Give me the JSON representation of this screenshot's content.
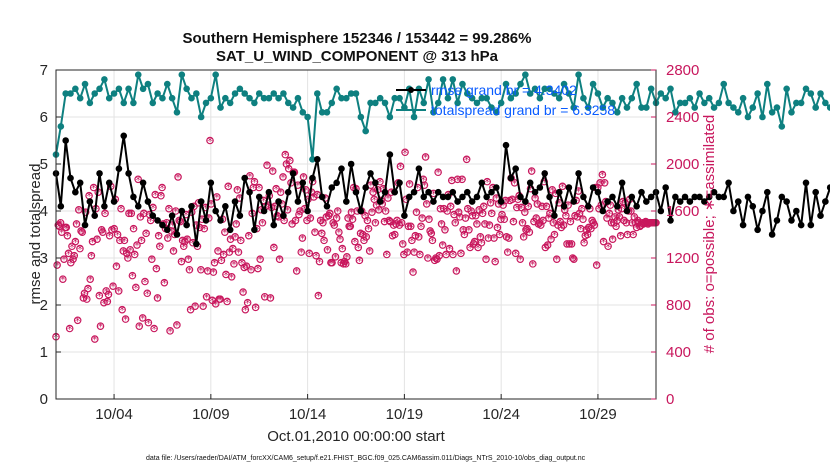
{
  "chart_data": {
    "type": "line",
    "title": "Southern Hemisphere 152346 / 153442 = 99.286%",
    "subtitle": "SAT_U_WIND_COMPONENT @ 313 hPa",
    "xlabel": "Oct.01,2010 00:00:00 start",
    "ylabel": "rmse and totalspread",
    "ylabel_right": "# of obs: o=possible; ∗=assimilated",
    "xlim": [
      1.0,
      32.0
    ],
    "ylim": [
      0,
      7
    ],
    "ylim_right": [
      0,
      2800
    ],
    "x_tick_values": [
      4,
      9,
      14,
      19,
      24,
      29
    ],
    "x_tick_labels": [
      "10/04",
      "10/09",
      "10/14",
      "10/19",
      "10/24",
      "10/29"
    ],
    "y_ticks": [
      0,
      1,
      2,
      3,
      4,
      5,
      6,
      7
    ],
    "y_ticks_right": [
      0,
      400,
      800,
      1200,
      1600,
      2000,
      2400,
      2800
    ],
    "grid": true,
    "legend_position": "top-right",
    "footer": "data file: /Users/raeder/DAI/ATM_forcXX/CAM6_setup/f.e21.FHIST_BGC.f09_025.CAM6assim.011/Diags_NTrS_2010-10/obs_diag_output.nc",
    "step_days": 0.25,
    "x_start": 1.0,
    "series": [
      {
        "name": "rmse grand br = 4.3402",
        "color": "#000000",
        "axis": "left",
        "values": [
          4.8,
          4.1,
          5.5,
          4.7,
          4.4,
          4.6,
          3.7,
          4.2,
          3.9,
          4.8,
          4.1,
          4.6,
          4.2,
          4.9,
          5.6,
          4.8,
          4.3,
          4.1,
          4.6,
          4.2,
          3.9,
          3.8,
          3.7,
          3.6,
          3.9,
          3.5,
          4.0,
          3.7,
          4.1,
          3.3,
          4.2,
          3.8,
          4.6,
          4.0,
          3.8,
          4.1,
          3.6,
          4.2,
          3.9,
          4.7,
          4.4,
          3.6,
          4.3,
          4.0,
          4.4,
          3.7,
          4.2,
          3.9,
          4.4,
          4.8,
          4.2,
          4.6,
          4.0,
          4.7,
          5.1,
          4.3,
          4.1,
          4.5,
          4.6,
          4.9,
          4.2,
          5.0,
          4.4,
          4.0,
          4.5,
          4.8,
          4.6,
          4.2,
          4.4,
          5.2,
          4.4,
          4.6,
          3.9,
          4.3,
          4.4,
          4.9,
          4.3,
          4.4,
          4.2,
          4.4,
          4.3,
          4.3,
          4.4,
          4.2,
          4.3,
          4.4,
          4.2,
          4.3,
          4.6,
          4.3,
          4.4,
          4.5,
          4.2,
          5.4,
          4.7,
          4.9,
          4.3,
          4.2,
          4.6,
          4.4,
          4.5,
          4.8,
          4.3,
          3.9,
          4.4,
          4.1,
          4.5,
          4.2,
          4.8,
          4.3,
          4.1,
          4.5,
          4.4,
          4.0,
          4.2,
          4.3,
          4.1,
          4.6,
          4.0,
          4.3,
          4.1,
          4.4,
          4.2,
          4.3,
          4.4,
          4.0,
          4.5,
          3.8,
          4.3,
          4.2,
          4.3,
          4.2,
          4.3,
          4.3,
          4.2,
          4.3,
          4.4,
          4.3,
          4.3,
          4.6,
          4.0,
          4.2,
          3.7,
          4.3,
          4.1,
          3.6,
          4.0,
          4.4,
          3.5,
          3.8,
          4.3,
          4.2,
          3.8,
          4.0,
          3.7,
          4.6,
          3.7,
          4.4,
          3.9,
          4.2,
          4.5,
          4.3,
          4.7,
          4.6,
          4.4,
          4.7,
          4.6,
          4.6,
          4.7,
          4.5,
          4.3,
          4.7,
          4.3,
          4.0,
          4.4,
          5.0,
          3.8,
          4.7,
          4.3,
          4.3,
          4.2,
          4.2
        ]
      },
      {
        "name": "totalspread grand br = 6.3258",
        "color": "#0e8080",
        "axis": "left",
        "values": [
          5.2,
          5.8,
          6.5,
          6.5,
          6.6,
          6.4,
          6.7,
          6.3,
          6.5,
          6.6,
          6.8,
          6.4,
          6.5,
          6.6,
          6.3,
          6.6,
          6.3,
          6.9,
          6.6,
          6.7,
          6.3,
          6.5,
          6.4,
          6.7,
          6.4,
          6.1,
          6.9,
          6.6,
          6.4,
          6.5,
          6.0,
          6.3,
          6.4,
          6.9,
          6.2,
          6.4,
          6.3,
          6.5,
          6.6,
          6.5,
          6.4,
          6.3,
          6.5,
          6.4,
          6.4,
          6.5,
          6.4,
          6.5,
          6.3,
          6.2,
          6.4,
          6.1,
          6.0,
          5.1,
          6.5,
          6.1,
          6.1,
          6.3,
          6.6,
          6.4,
          6.4,
          6.5,
          6.5,
          6.0,
          5.7,
          6.3,
          6.3,
          6.4,
          6.3,
          6.0,
          6.4,
          6.4,
          6.2,
          6.6,
          6.0,
          6.6,
          6.3,
          6.8,
          6.1,
          6.3,
          6.8,
          6.4,
          6.8,
          6.3,
          6.7,
          6.5,
          6.4,
          6.3,
          6.4,
          6.4,
          6.2,
          6.1,
          6.3,
          6.7,
          6.4,
          6.5,
          6.7,
          6.9,
          6.5,
          6.6,
          6.4,
          6.6,
          6.6,
          6.5,
          6.4,
          6.7,
          6.5,
          6.2,
          6.9,
          6.4,
          6.2,
          6.7,
          6.5,
          6.2,
          6.4,
          6.3,
          6.1,
          6.4,
          6.2,
          6.4,
          6.7,
          6.2,
          6.2,
          6.6,
          6.3,
          6.5,
          6.4,
          6.6,
          6.1,
          6.3,
          6.3,
          6.4,
          6.2,
          6.5,
          6.3,
          6.4,
          6.2,
          6.3,
          6.7,
          6.3,
          6.2,
          6.1,
          6.4,
          6.0,
          6.2,
          6.5,
          6.0,
          6.7,
          6.1,
          6.2,
          5.8,
          6.6,
          6.1,
          6.3,
          6.3,
          6.6,
          6.5,
          6.2,
          6.5,
          6.3,
          6.2,
          6.1,
          6.4,
          6.2,
          6.2,
          6.5,
          6.2,
          6.6,
          6.4,
          6.4,
          6.3,
          6.5,
          6.2,
          6.4,
          6.3,
          6.3,
          6.4,
          6.3,
          6.4,
          6.4,
          6.3,
          6.4
        ]
      },
      {
        "name": "# of obs possible",
        "color": "#c8175d",
        "axis": "right",
        "marker": "o",
        "values": [
          530,
          1140,
          1480,
          1470,
          1500,
          1420,
          1020,
          1190,
          1460,
          1460,
          1390,
          1240,
          600,
          1160,
          1300,
          1190,
          1220,
          1340,
          1490,
          670,
          1610,
          1280,
          1430,
          1420,
          860,
          900,
          1590,
          850,
          940,
          1730,
          1020,
          1220,
          1340,
          1800,
          510,
          1620,
          1360,
          1760,
          880,
          620,
          1440,
          1420,
          820,
          1580,
          920,
          830,
          890,
          1390,
          1810,
          1440,
          960,
          1450,
          1700,
          1130,
          1400,
          920,
          1350,
          1620,
          760,
          1260,
          1350,
          680,
          1240,
          1200,
          1580,
          1270,
          1580,
          1050,
          1450,
          1230,
          950,
          1310,
          1870,
          620,
          1550,
          1350,
          690,
          1580,
          1000,
          1410,
          900,
          650,
          1570,
          1520,
          1190,
          1630,
          600,
          1740,
          1110,
          860,
          1390,
          1300,
          1730,
          1800,
          1490,
          990,
          1450,
          1500,
          1370,
          1620,
          580,
          1430,
          1480,
          1260,
          1400,
          1600,
          630,
          1890,
          1520,
          1510,
          1170,
          1350,
          1300,
          1340,
          1570,
          1360,
          1190,
          1100,
          760,
          1590,
          1330,
          1640,
          790,
          1480,
          1300,
          1670,
          1460,
          1100,
          1530,
          790,
          1450,
          1630,
          870,
          1090,
          1540,
          2200,
          1660,
          840,
          1080,
          1160,
          810,
          1720,
          1260,
          850,
          850,
          1180,
          1530,
          1230,
          1420,
          1060,
          830,
          1810,
          1250,
          1360,
          1040,
          1280,
          1150,
          1380,
          1490,
          1780,
          1250,
          1710,
          1350,
          1160,
          910,
          1120,
          760,
          1130,
          820,
          1390,
          1900,
          1100,
          1580,
          1800,
          1850,
          780,
          1450,
          1110,
          1800,
          1190,
          1610,
          1500,
          1690,
          870,
          1640,
          1990,
          1650,
          1730,
          860,
          1630,
          1940,
          1290,
          1640,
          1790,
          1560,
          1550,
          1190,
          1760,
          1660,
          1890,
          1520,
          2080,
          2000,
          1610,
          1960,
          2030,
          1840,
          1490,
          1930,
          1930,
          1520,
          1090,
          1820,
          1570,
          1600,
          1250,
          1370,
          1890,
          1620,
          1780,
          1520,
          1700,
          1240,
          1540,
          1760,
          1850,
          1720,
          1420,
          1220,
          1740,
          880,
          1170,
          1520,
          1410,
          1500,
          1350,
          1710,
          1550,
          1270,
          1560,
          1580,
          1160,
          1160,
          1500,
          1480,
          1210,
          1540,
          1600,
          1420,
          1360,
          1160,
          1280,
          1150,
          1170,
          1150,
          1210,
          1540,
          1470,
          1470,
          1590,
          1530,
          1800,
          1340,
          1790,
          1600,
          1290,
          1180,
          1410,
          1600,
          1400,
          1350,
          1560,
          1380,
          1520,
          1450,
          1260,
          1820,
          1590,
          1760,
          1700,
          1500,
          1650,
          1780,
          1610,
          1850,
          1690,
          1660,
          1790,
          1510,
          1600,
          1230,
          1710,
          1520,
          1510,
          1760,
          1390,
          1480,
          1400,
          1490,
          1520,
          1840,
          1480,
          1980,
          1500,
          1320,
          1230,
          2100,
          1700,
          1250,
          1470,
          1830,
          1470,
          1350,
          1080,
          1250,
          1390,
          1590,
          1800,
          1380,
          1230,
          1470,
          1540,
          1870,
          1820,
          2060,
          1660,
          1200,
          1530,
          1430,
          1410,
          1350,
          1750,
          1180,
          1200,
          1190,
          1930,
          1220,
          1620,
          1490,
          1310,
          1620,
          1440,
          1230,
          1600,
          1740,
          1280,
          1640,
          1860,
          1230,
          1570,
          1500,
          1090,
          1870,
          1590,
          1550,
          1240,
          1870,
          1440,
          1400,
          1540,
          2040,
          1620,
          1440,
          1290,
          1600,
          1560,
          1320,
          1340,
          1560,
          1490,
          1290,
          1610,
          1380,
          1330,
          1580,
          1640,
          1490,
          1190,
          1850,
          1370,
          1480,
          1670,
          1580,
          1800,
          1370,
          1170,
          1710,
          1460,
          1660,
          1400,
          1530,
          1570,
          1650,
          1530,
          1690,
          1380,
          1250,
          1370,
          1690,
          1880,
          1700,
          1510,
          1840,
          1240,
          1630,
          1700,
          1730,
          1190,
          1630,
          1500,
          1380,
          1590,
          1440,
          1450,
          1640,
          1420,
          1790,
          1940,
          1150,
          1510,
          1710,
          1540,
          1660,
          1490,
          1500,
          1480,
          1640,
          1520,
          1850,
          1290,
          1640,
          1310,
          1540,
          1580,
          1360,
          1780,
          1500,
          1400,
          1750,
          1190,
          1480,
          1670,
          1510,
          1460,
          1810,
          1480,
          1610,
          1560,
          1320,
          1650,
          1320,
          1510,
          1320,
          1200,
          1190,
          1560,
          1690,
          1550,
          1770,
          1580,
          1450,
          1620,
          1530,
          1330,
          1390,
          1440,
          1400,
          1460,
          1620,
          1450,
          1520,
          1500,
          1480,
          1800,
          1140,
          1800,
          1620,
          1840,
          1650,
          1910,
          1340,
          1840,
          1680,
          1540,
          1300,
          1580,
          1650,
          1500,
          1360,
          1500,
          1550,
          1470,
          1520,
          1610,
          1550,
          1390,
          1620,
          1680,
          1520,
          1670,
          1500,
          1400,
          1600,
          1700,
          1600,
          1500,
          1400,
          1550,
          1500,
          1460,
          1520,
          1500,
          1470,
          1480,
          1500,
          1490,
          1500,
          1510,
          1500,
          1490,
          1500,
          1500,
          1500,
          1500,
          1500,
          1500,
          1500
        ]
      }
    ]
  }
}
